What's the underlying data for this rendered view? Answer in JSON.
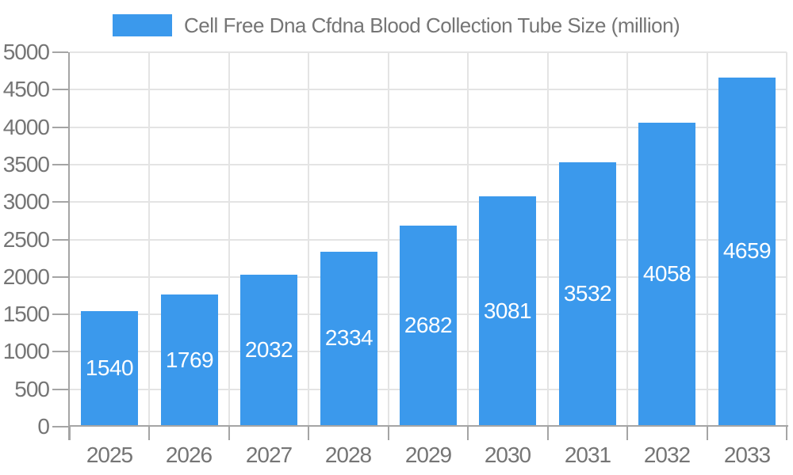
{
  "chart_data": {
    "type": "bar",
    "title": "Cell Free Dna Cfdna  Blood Collection Tube Size (million)",
    "xlabel": "",
    "ylabel": "",
    "categories": [
      "2025",
      "2026",
      "2027",
      "2028",
      "2029",
      "2030",
      "2031",
      "2032",
      "2033"
    ],
    "values": [
      1540,
      1769,
      2032,
      2334,
      2682,
      3081,
      3532,
      4058,
      4659
    ],
    "ylim": [
      0,
      5000
    ],
    "ytick_step": 500,
    "grid": true,
    "legend_position": "top",
    "value_label_position": "inside-center",
    "colors": {
      "bar": "#3b99ec",
      "value_label": "#ffffff",
      "axis_text": "#757575",
      "axis_line": "#a5a5a5",
      "gridline": "#e4e4e4",
      "background": "#ffffff"
    }
  }
}
